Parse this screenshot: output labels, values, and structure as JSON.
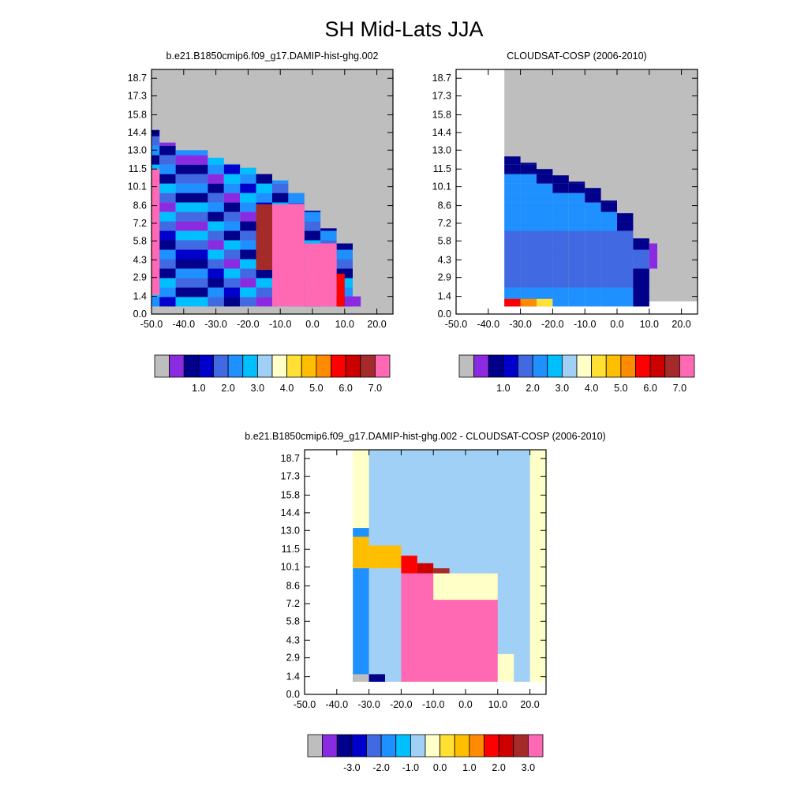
{
  "title": "SH Mid-Lats JJA",
  "chart_data": [
    {
      "type": "heatmap",
      "title": "b.e21.B1850cmip6.f09_g17.DAMIP-hist-ghg.002",
      "x_ticks": [
        "-50.0",
        "-40.0",
        "-30.0",
        "-20.0",
        "-10.0",
        "0.0",
        "10.0",
        "20.0"
      ],
      "y_ticks": [
        "0.0",
        "1.4",
        "2.9",
        "4.3",
        "5.8",
        "7.2",
        "8.6",
        "10.1",
        "11.5",
        "13.0",
        "14.4",
        "15.8",
        "17.3",
        "18.7"
      ],
      "xlim": [
        -50,
        25
      ],
      "ylim": [
        0.0,
        19.4
      ],
      "colorbar_labels": [
        "1.0",
        "2.0",
        "3.0",
        "4.0",
        "5.0",
        "6.0",
        "7.0"
      ],
      "colorbar_colors": [
        "#bebebe",
        "#8a2be2",
        "#00008b",
        "#0000cd",
        "#4169e1",
        "#1e90ff",
        "#00bfff",
        "#a0d0f5",
        "#ffffc8",
        "#ffe033",
        "#ffbf00",
        "#ff8c00",
        "#ff0000",
        "#cd0000",
        "#a52a2a",
        "#ff69b4"
      ]
    },
    {
      "type": "heatmap",
      "title": "CLOUDSAT-COSP (2006-2010)",
      "x_ticks": [
        "-50.0",
        "-40.0",
        "-30.0",
        "-20.0",
        "-10.0",
        "0.0",
        "10.0",
        "20.0"
      ],
      "y_ticks": [
        "0.0",
        "1.4",
        "2.9",
        "4.3",
        "5.8",
        "7.2",
        "8.6",
        "10.1",
        "11.5",
        "13.0",
        "14.4",
        "15.8",
        "17.3",
        "18.7"
      ],
      "xlim": [
        -50,
        25
      ],
      "ylim": [
        0.0,
        19.4
      ],
      "colorbar_labels": [
        "1.0",
        "2.0",
        "3.0",
        "4.0",
        "5.0",
        "6.0",
        "7.0"
      ],
      "colorbar_colors": [
        "#bebebe",
        "#8a2be2",
        "#00008b",
        "#0000cd",
        "#4169e1",
        "#1e90ff",
        "#00bfff",
        "#a0d0f5",
        "#ffffc8",
        "#ffe033",
        "#ffbf00",
        "#ff8c00",
        "#ff0000",
        "#cd0000",
        "#a52a2a",
        "#ff69b4"
      ]
    },
    {
      "type": "heatmap",
      "title": "b.e21.B1850cmip6.f09_g17.DAMIP-hist-ghg.002 - CLOUDSAT-COSP (2006-2010)",
      "x_ticks": [
        "-50.0",
        "-40.0",
        "-30.0",
        "-20.0",
        "-10.0",
        "0.0",
        "10.0",
        "20.0"
      ],
      "y_ticks": [
        "0.0",
        "1.4",
        "2.9",
        "4.3",
        "5.8",
        "7.2",
        "8.6",
        "10.1",
        "11.5",
        "13.0",
        "14.4",
        "15.8",
        "17.3",
        "18.7"
      ],
      "xlim": [
        -50,
        25
      ],
      "ylim": [
        0.0,
        19.4
      ],
      "colorbar_labels": [
        "-3.0",
        "-2.0",
        "-1.0",
        "0.0",
        "1.0",
        "2.0",
        "3.0"
      ],
      "colorbar_colors": [
        "#bebebe",
        "#8a2be2",
        "#00008b",
        "#0000cd",
        "#4169e1",
        "#1e90ff",
        "#00bfff",
        "#a0d0f5",
        "#ffffc8",
        "#ffe033",
        "#ffbf00",
        "#ff8c00",
        "#ff0000",
        "#cd0000",
        "#a52a2a",
        "#ff69b4"
      ]
    }
  ]
}
